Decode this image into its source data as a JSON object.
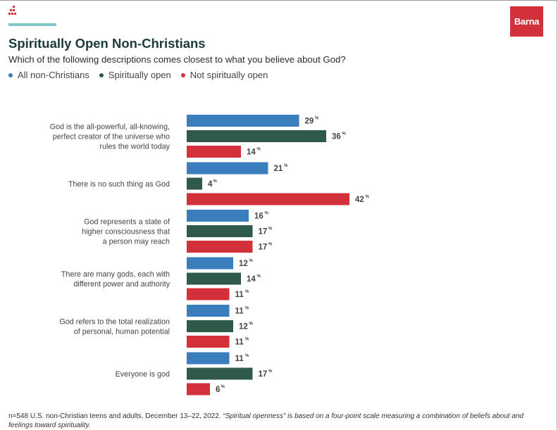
{
  "header": {
    "title": "Spiritually Open Non-Christians",
    "subtitle": "Which of the following descriptions comes closest to what you believe about God?",
    "brand": "Barna"
  },
  "colors": {
    "accent_line": "#7dc9c5",
    "brand": "#d3313a"
  },
  "chart_data": {
    "type": "bar",
    "orientation": "horizontal",
    "title": "Spiritually Open Non-Christians",
    "subtitle": "Which of the following descriptions comes closest to what you believe about God?",
    "unit": "%",
    "xlim": [
      0,
      50
    ],
    "categories": [
      [
        "God is the all-powerful, all-knowing,",
        "perfect creator of the universe who",
        "rules the world today"
      ],
      [
        "There is no such thing as God"
      ],
      [
        "God represents a state of",
        "higher consciousness that",
        "a person may reach"
      ],
      [
        "There are many gods, each with",
        "different power and authority"
      ],
      [
        "God refers to the total realization",
        "of personal, human potential"
      ],
      [
        "Everyone is god"
      ]
    ],
    "series": [
      {
        "name": "All non-Christians",
        "color": "#3a7ebe",
        "values": [
          29,
          21,
          16,
          12,
          11,
          11
        ]
      },
      {
        "name": "Spiritually open",
        "color": "#2f5a4a",
        "values": [
          36,
          4,
          17,
          14,
          12,
          17
        ]
      },
      {
        "name": "Not spiritually open",
        "color": "#d3313a",
        "values": [
          14,
          42,
          17,
          11,
          11,
          6
        ]
      }
    ]
  },
  "footnote": {
    "main": "n=548 U.S. non-Christian teens and adults, December 13–22, 2022. ",
    "italic": "“Spiritual openness” is based on a four-point scale measuring a combination of beliefs about and feelings toward spirituality."
  }
}
